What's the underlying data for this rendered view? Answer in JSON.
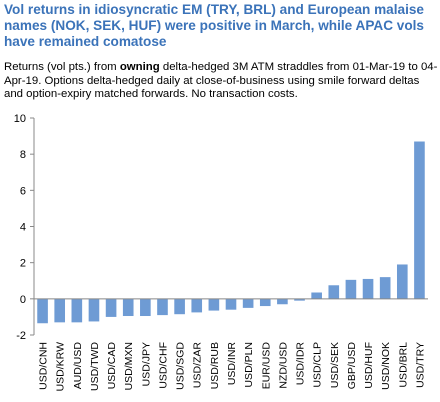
{
  "header": {
    "title": "Vol returns in idiosyncratic EM (TRY, BRL) and European malaise names (NOK, SEK, HUF) were positive in March, while APAC vols have remained comatose",
    "subtitle_pre": "Returns (vol pts.) from ",
    "subtitle_bold": "owning",
    "subtitle_post": " delta-hedged 3M ATM straddles from 01-Mar-19 to 04-Apr-19. Options delta-hedged daily at close-of-business using smile forward deltas and option-expiry matched forwards. No transaction costs."
  },
  "colors": {
    "title": "#3b73b9",
    "bar": "#6e9bd4",
    "axis": "#888888"
  },
  "chart_data": {
    "type": "bar",
    "title": "Vol returns in idiosyncratic EM (TRY, BRL) and European malaise names (NOK, SEK, HUF) were positive in March, while APAC vols have remained comatose",
    "xlabel": "",
    "ylabel": "",
    "ylim": [
      -2,
      10
    ],
    "yticks": [
      -2,
      0,
      2,
      4,
      6,
      8,
      10
    ],
    "grid": false,
    "categories": [
      "USD/CNH",
      "USD/KRW",
      "AUD/USD",
      "USD/TWD",
      "USD/CAD",
      "USD/MXN",
      "USD/JPY",
      "USD/CHF",
      "USD/SGD",
      "USD/ZAR",
      "USD/RUB",
      "USD/INR",
      "USD/PLN",
      "EUR/USD",
      "NZD/USD",
      "USD/IDR",
      "USD/CLP",
      "USD/SEK",
      "GBP/USD",
      "USD/HUF",
      "USD/NOK",
      "USD/BRL",
      "USD/TRY"
    ],
    "values": [
      -1.35,
      -1.3,
      -1.3,
      -1.25,
      -1.0,
      -0.95,
      -0.95,
      -0.9,
      -0.85,
      -0.75,
      -0.65,
      -0.6,
      -0.5,
      -0.4,
      -0.3,
      -0.1,
      0.35,
      0.75,
      1.05,
      1.1,
      1.2,
      1.9,
      8.7
    ]
  }
}
